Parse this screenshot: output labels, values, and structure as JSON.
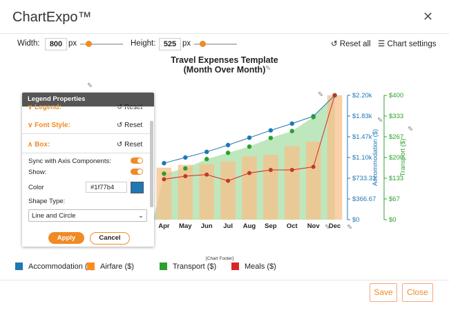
{
  "app": {
    "title": "ChartExpo™"
  },
  "controls": {
    "width_label": "Width:",
    "width_value": "800",
    "width_unit": "px",
    "height_label": "Height:",
    "height_value": "525",
    "height_unit": "px",
    "reset_all": "Reset all",
    "chart_settings": "Chart settings"
  },
  "chart_title": {
    "line1": "Travel Expenses Template",
    "line2": "(Month Over Month)"
  },
  "chart_data": {
    "type": "bar",
    "categories": [
      "Apr",
      "May",
      "Jun",
      "Jul",
      "Aug",
      "Sep",
      "Oct",
      "Nov",
      "Dec"
    ],
    "series": [
      {
        "name": "Accommodation ($)",
        "type": "line",
        "axis": "left",
        "color": "#1f77b4",
        "values": [
          1000,
          1100,
          1200,
          1320,
          1450,
          1580,
          1700,
          1830,
          2200
        ]
      },
      {
        "name": "Airfare ($)",
        "type": "bar",
        "axis": "left",
        "color": "#fdd0a2",
        "values": [
          920,
          970,
          980,
          1030,
          1120,
          1150,
          1300,
          1380,
          2200
        ]
      },
      {
        "name": "Transport ($)",
        "type": "area",
        "axis": "right",
        "color": "#2ca02c",
        "values": [
          148,
          165,
          195,
          215,
          235,
          263,
          285,
          330,
          400
        ]
      },
      {
        "name": "Meals ($)",
        "type": "line",
        "axis": "right",
        "color": "#d62728",
        "values": [
          130,
          140,
          145,
          125,
          150,
          160,
          160,
          170,
          400
        ]
      }
    ],
    "left_axis": {
      "label": "Accommodation ($)",
      "ticks": [
        "$0",
        "$366.67",
        "$733.33",
        "$1.10k",
        "$1.47k",
        "$1.83k",
        "$2.20k"
      ],
      "range": [
        0,
        2200
      ]
    },
    "right_axis": {
      "label": "Transport ($)",
      "ticks": [
        "$0",
        "$67",
        "$133",
        "$200",
        "$267",
        "$333",
        "$400"
      ],
      "range": [
        0,
        400
      ]
    },
    "footer": "[Chart Footer]"
  },
  "panel": {
    "title": "Legend Properties",
    "legend_label": "Legend:",
    "font_style_label": "Font Style:",
    "box_label": "Box:",
    "reset_label": "Reset",
    "sync_label": "Sync with Axis Components:",
    "show_label": "Show:",
    "color_label": "Color",
    "color_value": "#1f77b4",
    "shape_type_label": "Shape Type:",
    "shape_type_value": "Line and Circle",
    "apply": "Apply",
    "cancel": "Cancel"
  },
  "footer": {
    "save": "Save",
    "close": "Close"
  },
  "colors": {
    "accent": "#f08a24",
    "accommodation": "#1f77b4",
    "airfare": "#ff8c1a",
    "transport": "#2ca02c",
    "meals": "#d62728"
  },
  "icons": [
    "close-icon",
    "reset-icon",
    "settings-sliders-icon",
    "pencil-icon",
    "chevron-down-icon",
    "chevron-up-icon"
  ]
}
